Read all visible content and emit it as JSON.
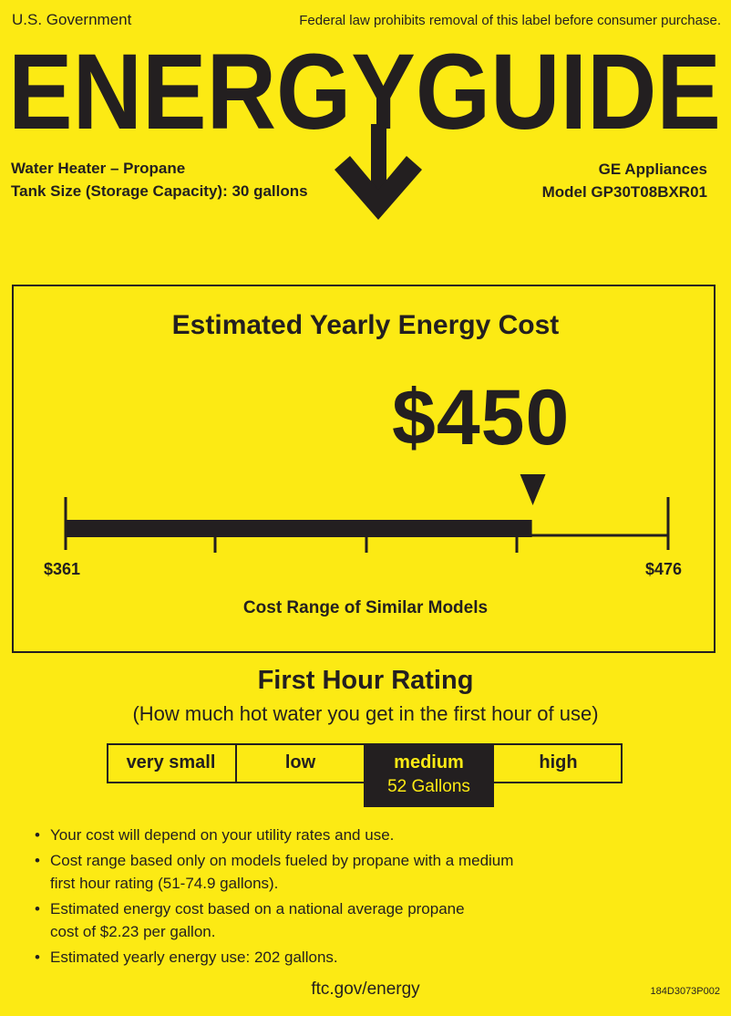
{
  "header": {
    "issuer": "U.S. Government",
    "notice": "Federal law prohibits removal of this label before consumer purchase.",
    "logo_text": "ENERGYGUIDE"
  },
  "product": {
    "type": "Water Heater – Propane",
    "tank_size": "Tank Size (Storage Capacity): 30 gallons",
    "brand": "GE Appliances",
    "model": "Model GP30T08BXR01"
  },
  "cost": {
    "title": "Estimated Yearly Energy Cost",
    "value": "$450",
    "amount": 450,
    "range_min": 361,
    "range_max": 476,
    "range_min_label": "$361",
    "range_max_label": "$476",
    "range_caption": "Cost Range of Similar Models"
  },
  "first_hour": {
    "title": "First Hour Rating",
    "subtitle": "(How much hot water you get in the first hour of use)",
    "categories": [
      "very small",
      "low",
      "medium",
      "high"
    ],
    "active_index": 2,
    "active_value": "52 Gallons"
  },
  "notes": [
    "Your cost will depend on your utility rates and use.",
    "Cost range based only on models fueled by propane with a medium first hour rating (51-74.9 gallons).",
    "Estimated energy cost based on a national average propane cost of $2.23 per gallon.",
    "Estimated yearly energy use: 202 gallons."
  ],
  "footer": {
    "link": "ftc.gov/energy",
    "code": "184D3073P002"
  },
  "colors": {
    "background": "#FCEA14",
    "ink": "#231F20"
  }
}
